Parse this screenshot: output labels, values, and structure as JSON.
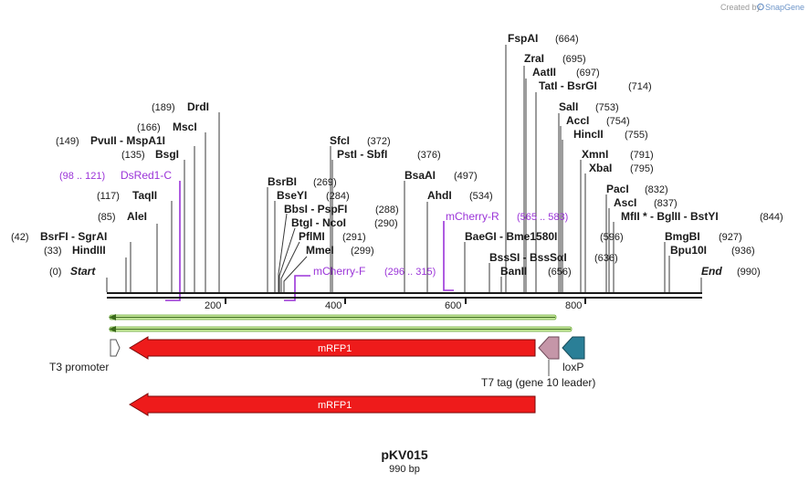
{
  "credit": {
    "prefix": "Created by",
    "brand": "SnapGene"
  },
  "plasmid": {
    "name": "pKV015",
    "length": "990 bp"
  },
  "ends": {
    "start_label": "Start",
    "start_pos": "(0)",
    "end_label": "End",
    "end_pos": "(990)"
  },
  "ticks": [
    "200",
    "400",
    "600",
    "800"
  ],
  "sites": [
    {
      "label": "HindIII",
      "pos": "(33)",
      "bp": 33
    },
    {
      "label": "BsrFI - SgrAI",
      "pos": "(42)",
      "bp": 42
    },
    {
      "label": "AleI",
      "pos": "(85)",
      "bp": 85
    },
    {
      "label": "TaqII",
      "pos": "(117)",
      "bp": 117
    },
    {
      "label": "BsgI",
      "pos": "(135)",
      "bp": 135
    },
    {
      "label": "PvuII - MspA1I",
      "pos": "(149)",
      "bp": 149
    },
    {
      "label": "MscI",
      "pos": "(166)",
      "bp": 166
    },
    {
      "label": "DrdI",
      "pos": "(189)",
      "bp": 189
    },
    {
      "label": "BsrBI",
      "pos": "(269)",
      "bp": 269
    },
    {
      "label": "BseYI",
      "pos": "(284)",
      "bp": 284
    },
    {
      "label": "BbsI - PspFI",
      "pos": "(288)",
      "bp": 288
    },
    {
      "label": "BtgI - NcoI",
      "pos": "(290)",
      "bp": 290
    },
    {
      "label": "PflMI",
      "pos": "(291)",
      "bp": 291
    },
    {
      "label": "MmeI",
      "pos": "(299)",
      "bp": 299
    },
    {
      "label": "SfcI",
      "pos": "(372)",
      "bp": 372
    },
    {
      "label": "PstI - SbfI",
      "pos": "(376)",
      "bp": 376
    },
    {
      "label": "BsaAI",
      "pos": "(497)",
      "bp": 497
    },
    {
      "label": "AhdI",
      "pos": "(534)",
      "bp": 534
    },
    {
      "label": "BaeGI - Bme1580I",
      "pos": "(596)",
      "bp": 596
    },
    {
      "label": "BssSI - BssSαI",
      "pos": "(636)",
      "bp": 636
    },
    {
      "label": "BanII",
      "pos": "(656)",
      "bp": 656
    },
    {
      "label": "FspAI",
      "pos": "(664)",
      "bp": 664
    },
    {
      "label": "ZraI",
      "pos": "(695)",
      "bp": 695
    },
    {
      "label": "AatII",
      "pos": "(697)",
      "bp": 697
    },
    {
      "label": "TatI - BsrGI",
      "pos": "(714)",
      "bp": 714
    },
    {
      "label": "SalI",
      "pos": "(753)",
      "bp": 753
    },
    {
      "label": "AccI",
      "pos": "(754)",
      "bp": 754
    },
    {
      "label": "HincII",
      "pos": "(755)",
      "bp": 755
    },
    {
      "label": "XmnI",
      "pos": "(791)",
      "bp": 791
    },
    {
      "label": "XbaI",
      "pos": "(795)",
      "bp": 795
    },
    {
      "label": "PacI",
      "pos": "(832)",
      "bp": 832
    },
    {
      "label": "AscI",
      "pos": "(837)",
      "bp": 837
    },
    {
      "label": "MfII * - BglII - BstYI",
      "pos": "(844)",
      "bp": 844
    },
    {
      "label": "BmgBI",
      "pos": "(927)",
      "bp": 927
    },
    {
      "label": "Bpu10I",
      "pos": "(936)",
      "bp": 936
    }
  ],
  "primers": [
    {
      "label": "DsRed1-C",
      "range": "(98 .. 121)"
    },
    {
      "label": "mCherry-F",
      "range": "(296 .. 315)"
    },
    {
      "label": "mCherry-R",
      "range": "(565 .. 583)"
    }
  ],
  "features": [
    {
      "label": "mRFP1",
      "color": "#ee1b1b"
    },
    {
      "label": "T3 promoter",
      "color": "#ffffff"
    },
    {
      "label": "T7 tag (gene 10 leader)",
      "color": "#c596a8"
    },
    {
      "label": "loxP",
      "color": "#2a7f97"
    },
    {
      "label": "mRFP1",
      "color": "#ee1b1b"
    }
  ],
  "colors": {
    "primer": "#9b34d8",
    "orf": "#7cc241"
  }
}
